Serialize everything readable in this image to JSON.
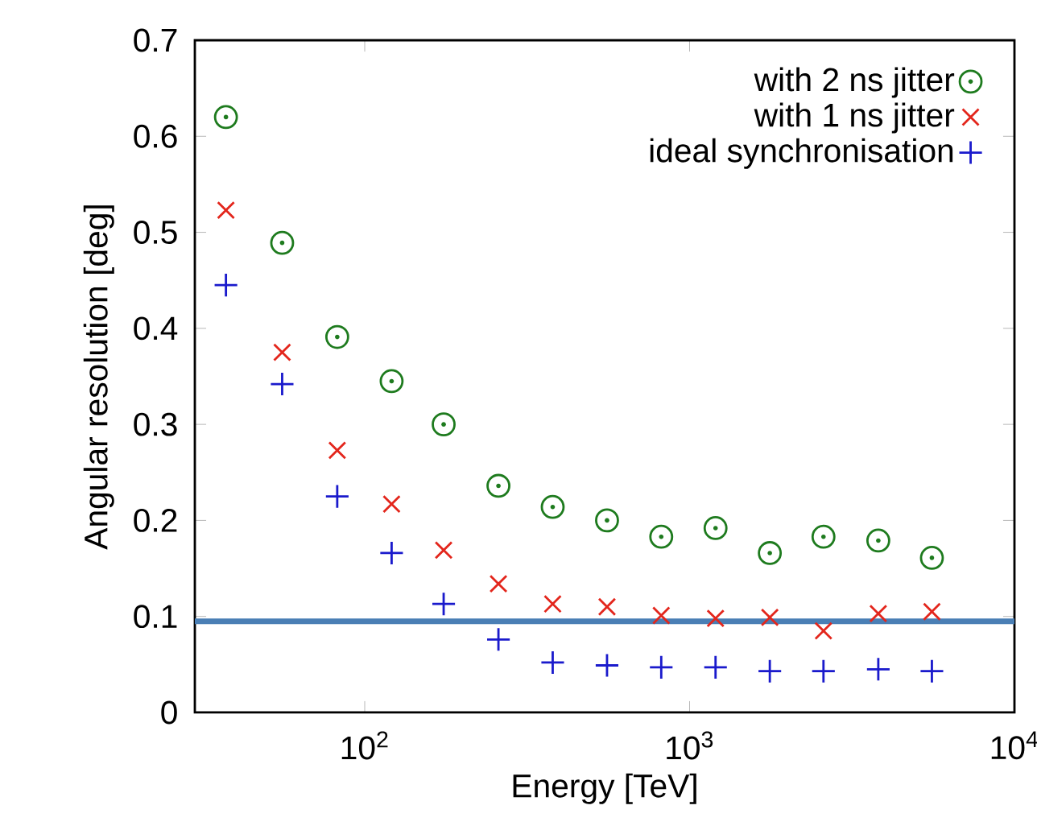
{
  "chart_data": {
    "type": "scatter",
    "xlabel": "Energy [TeV]",
    "ylabel": "Angular resolution [deg]",
    "x": [
      37.4,
      55.7,
      82.3,
      121,
      175,
      258,
      379,
      557,
      818,
      1202,
      1766,
      2583,
      3810,
      5570
    ],
    "series": [
      {
        "name": "with 2 ns jitter",
        "color": "#1e7b1e",
        "marker": "circle",
        "values": [
          0.62,
          0.489,
          0.391,
          0.345,
          0.3,
          0.236,
          0.214,
          0.2,
          0.183,
          0.192,
          0.166,
          0.183,
          0.179,
          0.161
        ]
      },
      {
        "name": "with 1 ns jitter",
        "color": "#e3261c",
        "marker": "cross",
        "values": [
          0.523,
          0.375,
          0.273,
          0.217,
          0.169,
          0.134,
          0.113,
          0.11,
          0.101,
          0.098,
          0.099,
          0.085,
          0.103,
          0.105
        ]
      },
      {
        "name": "ideal synchronisation",
        "color": "#1a1acc",
        "marker": "plus",
        "values": [
          0.445,
          0.342,
          0.225,
          0.166,
          0.113,
          0.076,
          0.052,
          0.049,
          0.047,
          0.047,
          0.043,
          0.043,
          0.045,
          0.043
        ]
      }
    ],
    "log": "x",
    "xlim": [
      30,
      10000
    ],
    "ylim": [
      0,
      0.7
    ],
    "xticks": [
      {
        "value": 100,
        "label": "10$^{2}$"
      },
      {
        "value": 1000,
        "label": "10$^{3}$"
      },
      {
        "value": 10000,
        "label": "10$^{4}$"
      }
    ],
    "yticks": [
      0,
      0.1,
      0.2,
      0.3,
      0.4,
      0.5,
      0.6,
      0.7
    ],
    "ref_lines": [
      {
        "axis": "y",
        "value": 0.095,
        "color": "#4a7fb5",
        "line_style": "solid"
      }
    ],
    "legend": "top right",
    "grid": false
  }
}
